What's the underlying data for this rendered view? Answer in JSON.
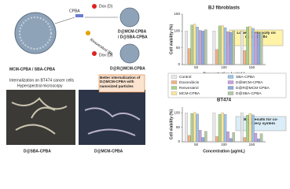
{
  "scheme": {
    "carrier": "CPBA",
    "dox1": "Dox (D)",
    "res": "Resveratrol (R)",
    "dox2": "Dox (D)",
    "product1": "D@MCM-CPBA",
    "product1b": "/ D@SBA-CPBA",
    "product2": "D@R@MCM-CPBA",
    "start": "MCM-CPBA / SBA-CPBA"
  },
  "microscopy": {
    "title": "Internalization on BT474 cancer cells",
    "subtitle": "Hyperspectral microscopy",
    "callout": "Better internalization of D@MCM-CPBA with nanosized particles",
    "left_label": "D@SBA-CPBA",
    "right_label": "D@MCM-CPBA"
  },
  "callouts": {
    "bj": "Lower cytotoxicity on normal cells",
    "bt": "Best results for co-delivery system"
  },
  "chart_data": [
    {
      "type": "bar",
      "title": "BJ fibroblasts",
      "y_label": "Cell viability (%)",
      "x_label": "Concentration (µg/mL)",
      "categories": [
        "50",
        "100",
        "150"
      ],
      "ylim": [
        0,
        150
      ],
      "yticks": [
        0,
        50,
        100,
        150
      ],
      "series": [
        {
          "name": "Control",
          "color": "#e8e8e8",
          "values": [
            100,
            100,
            100
          ]
        },
        {
          "name": "Doxorubicin",
          "color": "#f4b183",
          "values": [
            48,
            45,
            42
          ]
        },
        {
          "name": "Resveratrol",
          "color": "#a9d18e",
          "values": [
            118,
            115,
            112
          ]
        },
        {
          "name": "MCM-CPBA",
          "color": "#ffe699",
          "values": [
            120,
            116,
            113
          ]
        },
        {
          "name": "SBA-CPBA",
          "color": "#9dc3e6",
          "values": [
            112,
            110,
            108
          ]
        },
        {
          "name": "D@MCM-CPBA",
          "color": "#c9a0dc",
          "values": [
            102,
            98,
            95
          ]
        },
        {
          "name": "D@R@MCM-CPBA",
          "color": "#8faadc",
          "values": [
            100,
            96,
            92
          ]
        },
        {
          "name": "D@SBA-CPBA",
          "color": "#b4c7a6",
          "values": [
            104,
            100,
            97
          ]
        }
      ]
    },
    {
      "type": "bar",
      "title": "BT474",
      "y_label": "Cell viability (%)",
      "x_label": "Concentration (µg/mL)",
      "categories": [
        "50",
        "100",
        "150"
      ],
      "ylim": [
        0,
        120
      ],
      "yticks": [
        0,
        50,
        100
      ],
      "series": [
        {
          "color": "#e8e8e8",
          "values": [
            100,
            100,
            100
          ]
        },
        {
          "color": "#f4b183",
          "values": [
            22,
            18,
            15
          ]
        },
        {
          "color": "#a9d18e",
          "values": [
            98,
            95,
            92
          ]
        },
        {
          "color": "#ffe699",
          "values": [
            102,
            100,
            98
          ]
        },
        {
          "color": "#9dc3e6",
          "values": [
            96,
            95,
            93
          ]
        },
        {
          "color": "#c9a0dc",
          "values": [
            40,
            35,
            30
          ]
        },
        {
          "color": "#8faadc",
          "values": [
            15,
            12,
            10
          ]
        },
        {
          "color": "#b4c7a6",
          "values": [
            36,
            32,
            28
          ]
        }
      ]
    }
  ]
}
